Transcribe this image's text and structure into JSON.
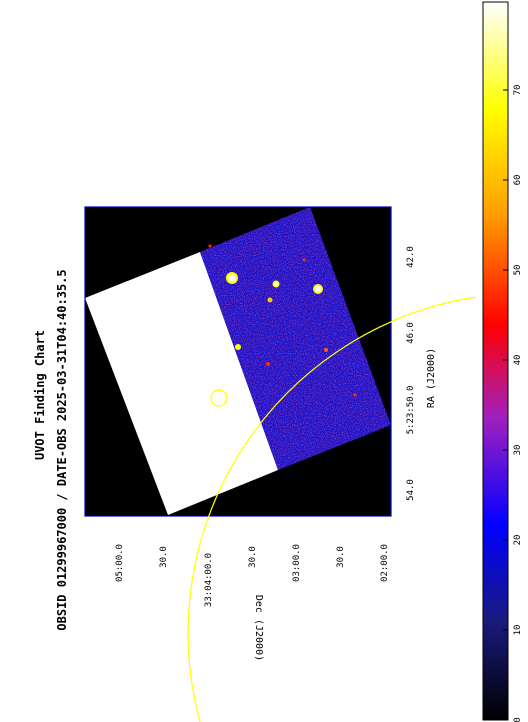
{
  "title_line1": "UVOT Finding Chart",
  "title_line2": "OBSID 01299967000 / DATE-OBS 2025-03-31T04:40:35.5",
  "ra_axis": {
    "label": "RA (J2000)",
    "ticks": [
      "54.0",
      "5:23:50.0",
      "46.0",
      "42.0"
    ]
  },
  "dec_axis": {
    "label": "Dec (J2000)",
    "ticks": [
      "05:00.0",
      "30.0",
      "33:04:00.0",
      "30.0",
      "03:00.0",
      "30.0",
      "02:00.0"
    ]
  },
  "colorbar": {
    "ticks": [
      "0",
      "10",
      "20",
      "30",
      "40",
      "50",
      "60",
      "70"
    ],
    "colors": [
      "#000000",
      "#0000ff",
      "#d040d0",
      "#ff0000",
      "#ffa500",
      "#ffff00",
      "#ffffff"
    ]
  },
  "overlay_color": "#ffff00",
  "frame_color": "#0000cc"
}
